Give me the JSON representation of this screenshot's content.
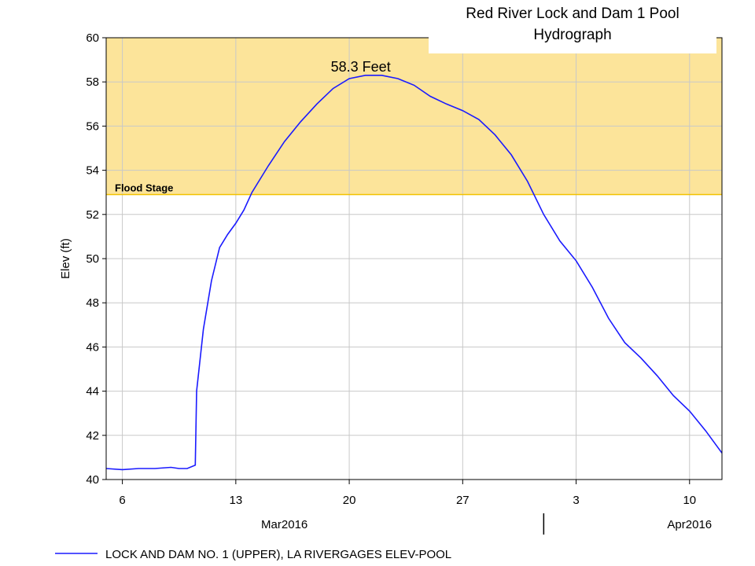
{
  "chart_data": {
    "type": "line",
    "title_lines": [
      "Red River Lock and Dam 1 Pool",
      "Hydrograph"
    ],
    "ylabel": "Elev (ft)",
    "ylim": [
      40,
      60
    ],
    "y_ticks": [
      40,
      42,
      44,
      46,
      48,
      50,
      52,
      54,
      56,
      58,
      60
    ],
    "x_range": [
      "2016-03-05",
      "2016-04-12"
    ],
    "x_ticks": [
      {
        "date": "2016-03-06",
        "label": "6"
      },
      {
        "date": "2016-03-13",
        "label": "13"
      },
      {
        "date": "2016-03-20",
        "label": "20"
      },
      {
        "date": "2016-03-27",
        "label": "27"
      },
      {
        "date": "2016-04-03",
        "label": "3"
      },
      {
        "date": "2016-04-10",
        "label": "10"
      }
    ],
    "month_labels": [
      {
        "date": "2016-03-16",
        "label": "Mar2016"
      },
      {
        "date": "2016-04-10",
        "label": "Apr2016"
      }
    ],
    "month_divider_date": "2016-04-01",
    "grid": true,
    "flood_stage": {
      "value": 52.9,
      "label": "Flood Stage",
      "color": "#fce49a",
      "line_color": "#f2c200"
    },
    "peak_annotation": {
      "date": "2016-03-21",
      "value": 58.3,
      "label": "58.3 Feet"
    },
    "series": [
      {
        "name": "LOCK AND DAM NO. 1 (UPPER), LA RIVERGAGES ELEV-POOL",
        "color": "#1a1aff",
        "points": [
          [
            "2016-03-05",
            40.5
          ],
          [
            "2016-03-06",
            40.45
          ],
          [
            "2016-03-07",
            40.5
          ],
          [
            "2016-03-08",
            40.5
          ],
          [
            "2016-03-09",
            40.55
          ],
          [
            "2016-03-09 12:00",
            40.5
          ],
          [
            "2016-03-10",
            40.5
          ],
          [
            "2016-03-10 12:00",
            40.65
          ],
          [
            "2016-03-10 14:00",
            44.0
          ],
          [
            "2016-03-11",
            46.8
          ],
          [
            "2016-03-11 12:00",
            49.0
          ],
          [
            "2016-03-12",
            50.5
          ],
          [
            "2016-03-12 12:00",
            51.1
          ],
          [
            "2016-03-13",
            51.6
          ],
          [
            "2016-03-13 12:00",
            52.2
          ],
          [
            "2016-03-14",
            53.0
          ],
          [
            "2016-03-15",
            54.2
          ],
          [
            "2016-03-16",
            55.3
          ],
          [
            "2016-03-17",
            56.2
          ],
          [
            "2016-03-18",
            57.0
          ],
          [
            "2016-03-19",
            57.7
          ],
          [
            "2016-03-20",
            58.15
          ],
          [
            "2016-03-21",
            58.3
          ],
          [
            "2016-03-22",
            58.3
          ],
          [
            "2016-03-23",
            58.15
          ],
          [
            "2016-03-24",
            57.85
          ],
          [
            "2016-03-25",
            57.35
          ],
          [
            "2016-03-26",
            57.0
          ],
          [
            "2016-03-27",
            56.7
          ],
          [
            "2016-03-28",
            56.3
          ],
          [
            "2016-03-29",
            55.6
          ],
          [
            "2016-03-30",
            54.7
          ],
          [
            "2016-03-31",
            53.5
          ],
          [
            "2016-04-01",
            52.0
          ],
          [
            "2016-04-02",
            50.8
          ],
          [
            "2016-04-03",
            49.9
          ],
          [
            "2016-04-04",
            48.7
          ],
          [
            "2016-04-05",
            47.3
          ],
          [
            "2016-04-06",
            46.2
          ],
          [
            "2016-04-07",
            45.5
          ],
          [
            "2016-04-08",
            44.7
          ],
          [
            "2016-04-09",
            43.8
          ],
          [
            "2016-04-10",
            43.1
          ],
          [
            "2016-04-11",
            42.2
          ],
          [
            "2016-04-12",
            41.2
          ]
        ]
      }
    ]
  }
}
